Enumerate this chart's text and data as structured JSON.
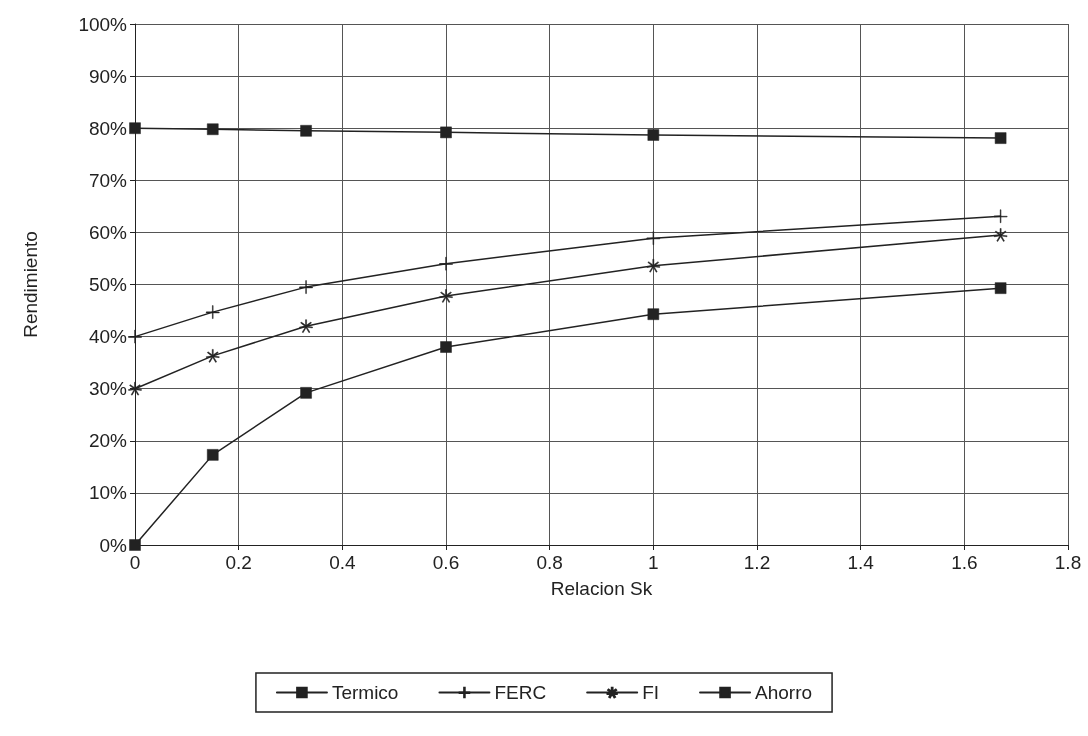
{
  "chart_data": {
    "type": "line",
    "xlabel": "Relacion Sk",
    "ylabel": "Rendimiento",
    "xlim": [
      0,
      1.8
    ],
    "xticks": [
      0,
      0.2,
      0.4,
      0.6,
      0.8,
      1,
      1.2,
      1.4,
      1.6,
      1.8
    ],
    "ylim": [
      0,
      100
    ],
    "yticks": [
      {
        "value": 0,
        "label": "0%"
      },
      {
        "value": 10,
        "label": "10%"
      },
      {
        "value": 20,
        "label": "20%"
      },
      {
        "value": 30,
        "label": "30%"
      },
      {
        "value": 40,
        "label": "40%"
      },
      {
        "value": 50,
        "label": "50%"
      },
      {
        "value": 60,
        "label": "60%"
      },
      {
        "value": 70,
        "label": "70%"
      },
      {
        "value": 80,
        "label": "80%"
      },
      {
        "value": 90,
        "label": "90%"
      },
      {
        "value": 100,
        "label": "100%"
      }
    ],
    "x": [
      0,
      0.15,
      0.33,
      0.6,
      1,
      1.67
    ],
    "grid": true,
    "legend": "bottom",
    "line_style": "solid",
    "series": [
      {
        "name": "Termico",
        "color": "#222222",
        "marker": "square",
        "values": [
          80,
          79.8,
          79.5,
          79.2,
          78.7,
          78.1
        ]
      },
      {
        "name": "FERC",
        "color": "#222222",
        "marker": "cross",
        "values": [
          40,
          44.7,
          49.5,
          54,
          58.9,
          63.1
        ]
      },
      {
        "name": "FI",
        "color": "#222222",
        "marker": "star",
        "values": [
          30,
          36.3,
          42,
          47.8,
          53.6,
          59.5
        ]
      },
      {
        "name": "Ahorro",
        "color": "#222222",
        "marker": "square",
        "values": [
          0,
          17.3,
          29.2,
          38,
          44.3,
          49.3
        ]
      }
    ]
  }
}
